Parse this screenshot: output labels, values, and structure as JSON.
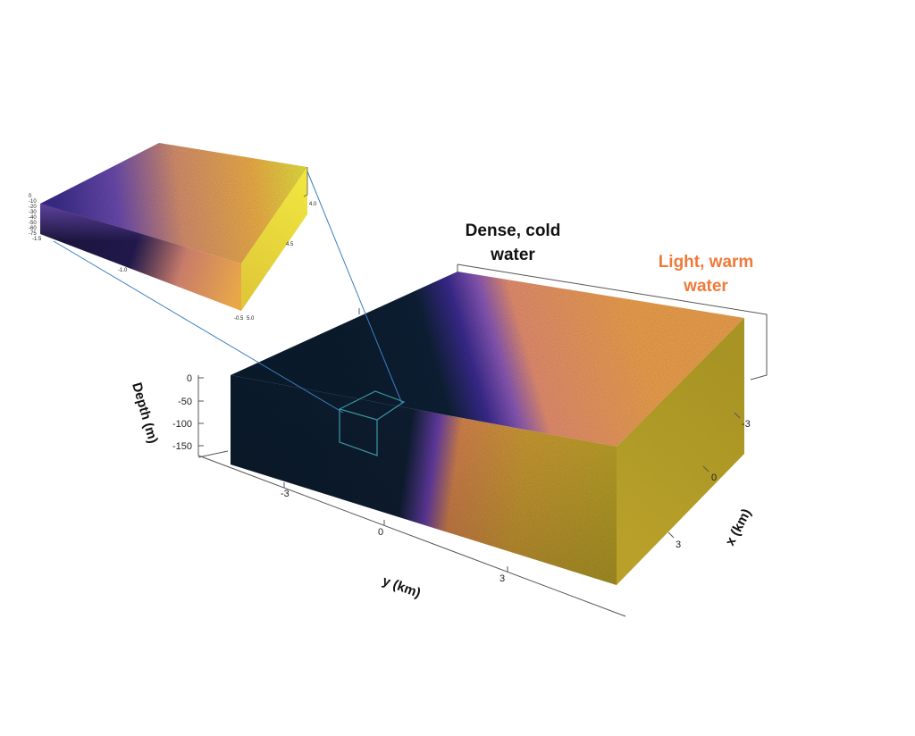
{
  "annotations": {
    "cold_line1": "Dense, cold",
    "cold_line2": "water",
    "warm_line1": "Light, warm",
    "warm_line2": "water"
  },
  "colors": {
    "cold_text": "#111111",
    "warm_text": "#ef7a3a",
    "deep": "#0b1c2e",
    "purple": "#4a2fa8",
    "orange": "#f0a050",
    "yellow": "#c9b22a",
    "zoom_line": "#3a7fc0"
  },
  "main_axes": {
    "depth_title": "Depth (m)",
    "depth_ticks": [
      "0",
      "-50",
      "-100",
      "-150"
    ],
    "y_title": "y (km)",
    "y_ticks": [
      "-3",
      "0",
      "3"
    ],
    "x_title": "x (km)",
    "x_ticks": [
      "-3",
      "0",
      "3"
    ]
  },
  "inset_axes": {
    "depth_ticks": [
      "0",
      "-10",
      "-20",
      "-30",
      "-40",
      "-50",
      "-60",
      "-75",
      "-1.5"
    ],
    "y_ticks": [
      "-1.0",
      "-0.5"
    ],
    "x_ticks": [
      "4.0",
      "4.5",
      "5.0"
    ]
  }
}
